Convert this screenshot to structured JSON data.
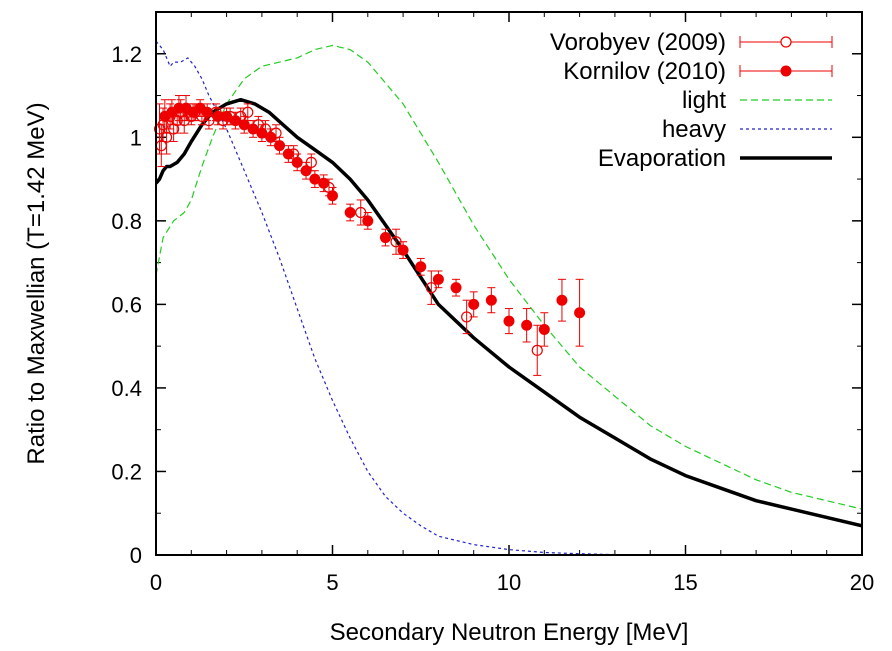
{
  "chart_data": {
    "type": "line",
    "title": "",
    "xlabel": "Secondary Neutron Energy [MeV]",
    "ylabel": "Ratio to Maxwellian (T=1.42 MeV)",
    "xlim": [
      0,
      20
    ],
    "ylim": [
      0,
      1.3
    ],
    "x_ticks": [
      0,
      5,
      10,
      15,
      20
    ],
    "x_tick_labels": [
      "0",
      "5",
      "10",
      "15",
      "20"
    ],
    "y_ticks": [
      0,
      0.2,
      0.4,
      0.6,
      0.8,
      1.0,
      1.2
    ],
    "y_tick_labels": [
      "0",
      "0.2",
      "0.4",
      "0.6",
      "0.8",
      "1",
      "1.2"
    ],
    "grid": false,
    "legend_position": "top-right",
    "series": [
      {
        "name": "Vorobyev (2009)",
        "kind": "points",
        "marker": "open-circle",
        "color": "#ee0000",
        "points": [
          {
            "x": 0.1,
            "y": 1.02,
            "err": 0.06
          },
          {
            "x": 0.15,
            "y": 0.98,
            "err": 0.05
          },
          {
            "x": 0.2,
            "y": 1.03,
            "err": 0.04
          },
          {
            "x": 0.3,
            "y": 1.0,
            "err": 0.04
          },
          {
            "x": 0.4,
            "y": 1.05,
            "err": 0.03
          },
          {
            "x": 0.5,
            "y": 1.02,
            "err": 0.03
          },
          {
            "x": 0.6,
            "y": 1.04,
            "err": 0.03
          },
          {
            "x": 0.7,
            "y": 1.06,
            "err": 0.03
          },
          {
            "x": 0.8,
            "y": 1.04,
            "err": 0.03
          },
          {
            "x": 0.9,
            "y": 1.06,
            "err": 0.02
          },
          {
            "x": 1.0,
            "y": 1.05,
            "err": 0.02
          },
          {
            "x": 1.1,
            "y": 1.06,
            "err": 0.02
          },
          {
            "x": 1.3,
            "y": 1.05,
            "err": 0.02
          },
          {
            "x": 1.5,
            "y": 1.04,
            "err": 0.02
          },
          {
            "x": 1.7,
            "y": 1.06,
            "err": 0.02
          },
          {
            "x": 1.9,
            "y": 1.04,
            "err": 0.02
          },
          {
            "x": 2.1,
            "y": 1.05,
            "err": 0.02
          },
          {
            "x": 2.4,
            "y": 1.05,
            "err": 0.02
          },
          {
            "x": 2.6,
            "y": 1.06,
            "err": 0.02
          },
          {
            "x": 2.9,
            "y": 1.03,
            "err": 0.02
          },
          {
            "x": 3.1,
            "y": 1.02,
            "err": 0.02
          },
          {
            "x": 3.4,
            "y": 1.01,
            "err": 0.02
          },
          {
            "x": 3.9,
            "y": 0.96,
            "err": 0.02
          },
          {
            "x": 4.4,
            "y": 0.94,
            "err": 0.02
          },
          {
            "x": 4.9,
            "y": 0.88,
            "err": 0.02
          },
          {
            "x": 5.8,
            "y": 0.82,
            "err": 0.03
          },
          {
            "x": 6.8,
            "y": 0.75,
            "err": 0.03
          },
          {
            "x": 7.8,
            "y": 0.64,
            "err": 0.04
          },
          {
            "x": 8.8,
            "y": 0.57,
            "err": 0.04
          },
          {
            "x": 10.8,
            "y": 0.49,
            "err": 0.06
          }
        ]
      },
      {
        "name": "Kornilov (2010)",
        "kind": "points",
        "marker": "filled-circle",
        "color": "#ee0000",
        "points": [
          {
            "x": 0.25,
            "y": 1.05,
            "err": 0.04
          },
          {
            "x": 0.45,
            "y": 1.06,
            "err": 0.03
          },
          {
            "x": 0.65,
            "y": 1.07,
            "err": 0.03
          },
          {
            "x": 0.85,
            "y": 1.07,
            "err": 0.03
          },
          {
            "x": 1.05,
            "y": 1.06,
            "err": 0.02
          },
          {
            "x": 1.25,
            "y": 1.07,
            "err": 0.02
          },
          {
            "x": 1.45,
            "y": 1.06,
            "err": 0.02
          },
          {
            "x": 1.75,
            "y": 1.05,
            "err": 0.02
          },
          {
            "x": 2.0,
            "y": 1.05,
            "err": 0.02
          },
          {
            "x": 2.25,
            "y": 1.04,
            "err": 0.02
          },
          {
            "x": 2.5,
            "y": 1.03,
            "err": 0.02
          },
          {
            "x": 2.75,
            "y": 1.02,
            "err": 0.02
          },
          {
            "x": 3.0,
            "y": 1.01,
            "err": 0.02
          },
          {
            "x": 3.25,
            "y": 1.0,
            "err": 0.02
          },
          {
            "x": 3.5,
            "y": 0.98,
            "err": 0.02
          },
          {
            "x": 3.75,
            "y": 0.96,
            "err": 0.02
          },
          {
            "x": 4.0,
            "y": 0.94,
            "err": 0.02
          },
          {
            "x": 4.25,
            "y": 0.92,
            "err": 0.02
          },
          {
            "x": 4.5,
            "y": 0.9,
            "err": 0.02
          },
          {
            "x": 4.75,
            "y": 0.89,
            "err": 0.02
          },
          {
            "x": 5.0,
            "y": 0.86,
            "err": 0.02
          },
          {
            "x": 5.5,
            "y": 0.82,
            "err": 0.02
          },
          {
            "x": 6.0,
            "y": 0.8,
            "err": 0.02
          },
          {
            "x": 6.5,
            "y": 0.76,
            "err": 0.02
          },
          {
            "x": 7.0,
            "y": 0.73,
            "err": 0.02
          },
          {
            "x": 7.5,
            "y": 0.69,
            "err": 0.02
          },
          {
            "x": 8.0,
            "y": 0.66,
            "err": 0.02
          },
          {
            "x": 8.5,
            "y": 0.64,
            "err": 0.02
          },
          {
            "x": 9.0,
            "y": 0.6,
            "err": 0.03
          },
          {
            "x": 9.5,
            "y": 0.61,
            "err": 0.03
          },
          {
            "x": 10.0,
            "y": 0.56,
            "err": 0.03
          },
          {
            "x": 10.5,
            "y": 0.55,
            "err": 0.04
          },
          {
            "x": 11.0,
            "y": 0.54,
            "err": 0.04
          },
          {
            "x": 11.5,
            "y": 0.61,
            "err": 0.05
          },
          {
            "x": 12.0,
            "y": 0.58,
            "err": 0.08
          }
        ]
      },
      {
        "name": "light",
        "kind": "line",
        "style": "dashed",
        "color": "#22cc22",
        "x": [
          0,
          0.2,
          0.5,
          0.8,
          1.0,
          1.3,
          1.6,
          2.0,
          2.5,
          3.0,
          3.5,
          4.0,
          4.5,
          5.0,
          5.5,
          6.0,
          7.0,
          8.0,
          9.0,
          10.0,
          11.0,
          12.0,
          13.0,
          14.0,
          15.0,
          16.0,
          17.0,
          18.0,
          19.0,
          20.0
        ],
        "y": [
          0.67,
          0.76,
          0.8,
          0.82,
          0.85,
          0.93,
          1.0,
          1.08,
          1.14,
          1.17,
          1.18,
          1.19,
          1.21,
          1.22,
          1.21,
          1.18,
          1.08,
          0.94,
          0.79,
          0.66,
          0.55,
          0.45,
          0.38,
          0.31,
          0.26,
          0.22,
          0.18,
          0.15,
          0.13,
          0.11
        ]
      },
      {
        "name": "heavy",
        "kind": "line",
        "style": "dotted",
        "color": "#2222cc",
        "x": [
          0,
          0.1,
          0.2,
          0.3,
          0.4,
          0.5,
          0.7,
          0.9,
          1.1,
          1.3,
          1.5,
          2.0,
          2.5,
          3.0,
          3.5,
          4.0,
          4.5,
          5.0,
          5.5,
          6.0,
          6.5,
          7.0,
          7.5,
          8.0,
          9.0,
          10.0,
          11.0,
          12.0,
          13.0,
          14.0
        ],
        "y": [
          1.23,
          1.22,
          1.21,
          1.19,
          1.17,
          1.18,
          1.18,
          1.19,
          1.17,
          1.14,
          1.1,
          1.02,
          0.92,
          0.82,
          0.71,
          0.59,
          0.47,
          0.37,
          0.28,
          0.2,
          0.14,
          0.1,
          0.07,
          0.045,
          0.025,
          0.013,
          0.006,
          0.003,
          0.001,
          0
        ]
      },
      {
        "name": "Evaporation",
        "kind": "line",
        "style": "solid-thick",
        "color": "#000000",
        "x": [
          0,
          0.1,
          0.2,
          0.3,
          0.4,
          0.6,
          0.8,
          1.0,
          1.3,
          1.6,
          2.0,
          2.4,
          2.8,
          3.2,
          3.6,
          4.0,
          4.5,
          5.0,
          5.5,
          6.0,
          6.5,
          7.0,
          8.0,
          9.0,
          10.0,
          11.0,
          12.0,
          13.0,
          14.0,
          15.0,
          16.0,
          17.0,
          18.0,
          19.0,
          20.0
        ],
        "y": [
          0.89,
          0.9,
          0.92,
          0.93,
          0.93,
          0.94,
          0.96,
          0.99,
          1.03,
          1.06,
          1.08,
          1.09,
          1.08,
          1.06,
          1.03,
          1.0,
          0.97,
          0.94,
          0.9,
          0.85,
          0.79,
          0.73,
          0.6,
          0.52,
          0.45,
          0.39,
          0.33,
          0.28,
          0.23,
          0.19,
          0.16,
          0.13,
          0.11,
          0.09,
          0.07
        ]
      }
    ]
  }
}
